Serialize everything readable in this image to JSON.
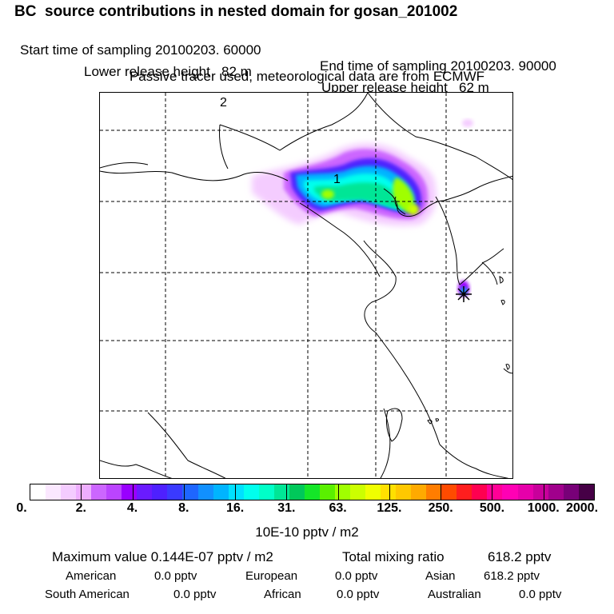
{
  "header": {
    "title": "BC  source contributions in nested domain for gosan_201002",
    "start_label": "Start time of sampling 20100203. 60000",
    "end_label": "End time of sampling 20100203. 90000",
    "lower_label": "Lower release height   82 m",
    "upper_label": "Upper release height   62 m",
    "tracer_line": "Passive tracer used, meteorological data are from ECMWF"
  },
  "map": {
    "label_1": "1",
    "label_2": "2",
    "receptor_marker": "star-icon"
  },
  "colorbar": {
    "labels": [
      "0.",
      "2.",
      "4.",
      "8.",
      "16.",
      "31.",
      "63.",
      "125.",
      "250.",
      "500.",
      "1000.",
      "2000."
    ],
    "colors": [
      "#ffffff",
      "#fbe8ff",
      "#f4ccff",
      "#eeaeff",
      "#cc66ff",
      "#bb44ff",
      "#9900ff",
      "#6a1bff",
      "#4e20ff",
      "#3a3aff",
      "#1e66ff",
      "#1190ff",
      "#00b4ff",
      "#00e0ff",
      "#00ffee",
      "#00ffc8",
      "#00e696",
      "#00c85a",
      "#14e628",
      "#5af000",
      "#a0ff00",
      "#ccff00",
      "#f0ff00",
      "#ffe000",
      "#ffc800",
      "#ffaa00",
      "#ff7d00",
      "#ff4b00",
      "#ff1e1e",
      "#ff0050",
      "#ff0096",
      "#ff00b4",
      "#e600aa",
      "#c8009b",
      "#a0008c",
      "#780078",
      "#460046"
    ],
    "unit": "10E-10 pptv / m2"
  },
  "stats": {
    "max_label": "Maximum value  0.144E-07 pptv / m2",
    "total_label": "Total mixing ratio",
    "total_value": "618.2 pptv",
    "american_label": "American",
    "american_value": "0.0 pptv",
    "european_label": "European",
    "european_value": "0.0 pptv",
    "asian_label": "Asian",
    "asian_value": "618.2 pptv",
    "south_american_label": "South American",
    "south_american_value": "0.0 pptv",
    "african_label": "African",
    "african_value": "0.0 pptv",
    "australian_label": "Australian",
    "australian_value": "0.0 pptv"
  }
}
